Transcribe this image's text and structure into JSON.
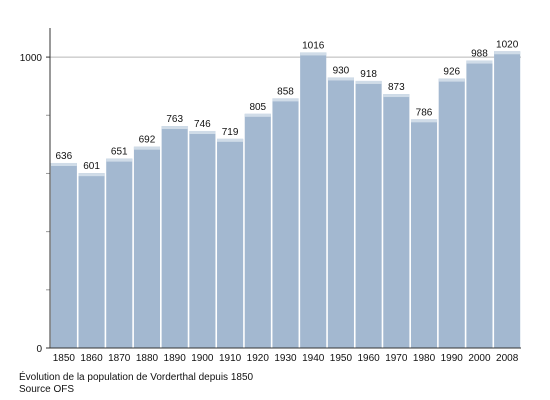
{
  "chart_data": {
    "type": "bar",
    "categories": [
      "1850",
      "1860",
      "1870",
      "1880",
      "1890",
      "1900",
      "1910",
      "1920",
      "1930",
      "1940",
      "1950",
      "1960",
      "1970",
      "1980",
      "1990",
      "2000",
      "2008"
    ],
    "values": [
      636,
      601,
      651,
      692,
      763,
      746,
      719,
      805,
      858,
      1016,
      930,
      918,
      873,
      786,
      926,
      988,
      1020
    ],
    "ylim": [
      0,
      1100
    ],
    "y_ticks": [
      0,
      1000
    ],
    "grid": true,
    "bar_color": "#a3b8d0",
    "bar_top_color": "#d0dce8"
  },
  "caption": {
    "title": "Évolution de la population de Vorderthal depuis 1850",
    "source": "Source OFS"
  }
}
